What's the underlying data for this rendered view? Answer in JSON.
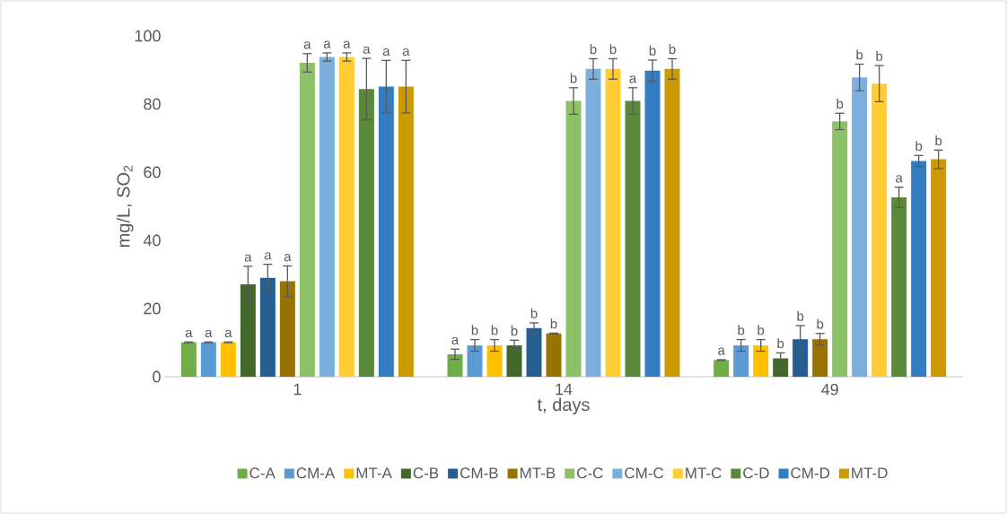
{
  "chart_data": {
    "type": "bar",
    "xlabel": "t, days",
    "ylabel": "mg/L, SO$_{2}$",
    "categories": [
      "1",
      "14",
      "49"
    ],
    "ylim": [
      0,
      100
    ],
    "yticks": [
      0,
      20,
      40,
      60,
      80,
      100
    ],
    "legend": "bottom",
    "series": [
      {
        "name": "C-A",
        "color": "#70ad47",
        "values": [
          10.1,
          6.6,
          4.9
        ],
        "errors": [
          0.1,
          1.5,
          0.1
        ],
        "value_labels": [
          "a",
          "a",
          "a"
        ]
      },
      {
        "name": "CM-A",
        "color": "#5b9bd5",
        "values": [
          10.1,
          9.2,
          9.2
        ],
        "errors": [
          0.1,
          1.7,
          1.7
        ],
        "value_labels": [
          "a",
          "b",
          "b"
        ]
      },
      {
        "name": "MT-A",
        "color": "#ffc000",
        "values": [
          10.1,
          9.2,
          9.2
        ],
        "errors": [
          0.1,
          1.7,
          1.7
        ],
        "value_labels": [
          "a",
          "b",
          "b"
        ]
      },
      {
        "name": "C-B",
        "color": "#43682b",
        "values": [
          27.1,
          9.2,
          5.4
        ],
        "errors": [
          5.3,
          1.5,
          1.6
        ],
        "value_labels": [
          "a",
          "b",
          "b"
        ]
      },
      {
        "name": "CM-B",
        "color": "#255e91",
        "values": [
          29.0,
          14.3,
          11.0
        ],
        "errors": [
          4.0,
          1.5,
          4.0
        ],
        "value_labels": [
          "a",
          "b",
          "b"
        ]
      },
      {
        "name": "MT-B",
        "color": "#997300",
        "values": [
          28.0,
          12.7,
          11.0
        ],
        "errors": [
          4.5,
          0.1,
          1.7
        ],
        "value_labels": [
          "a",
          "b",
          "b"
        ]
      },
      {
        "name": "C-C",
        "color": "#8cc168",
        "values": [
          92.1,
          80.9,
          74.9
        ],
        "errors": [
          2.7,
          3.9,
          2.4
        ],
        "value_labels": [
          "a",
          "b",
          "b"
        ]
      },
      {
        "name": "CM-C",
        "color": "#7cafdd",
        "values": [
          93.8,
          90.3,
          87.8
        ],
        "errors": [
          1.2,
          3.0,
          3.9
        ],
        "value_labels": [
          "a",
          "b",
          "b"
        ]
      },
      {
        "name": "MT-C",
        "color": "#ffcd33",
        "values": [
          93.8,
          90.3,
          86.0
        ],
        "errors": [
          1.2,
          3.0,
          5.3
        ],
        "value_labels": [
          "a",
          "b",
          "b"
        ]
      },
      {
        "name": "C-D",
        "color": "#5a8a39",
        "values": [
          84.4,
          80.9,
          52.6
        ],
        "errors": [
          9.0,
          3.9,
          3.0
        ],
        "value_labels": [
          "a",
          "a",
          "a"
        ]
      },
      {
        "name": "CM-D",
        "color": "#327dc2",
        "values": [
          85.1,
          89.8,
          63.3
        ],
        "errors": [
          7.7,
          3.1,
          1.6
        ],
        "value_labels": [
          "a",
          "b",
          "b"
        ]
      },
      {
        "name": "MT-D",
        "color": "#cc9a00",
        "values": [
          85.1,
          90.3,
          63.8
        ],
        "errors": [
          7.7,
          3.0,
          2.7
        ],
        "value_labels": [
          "a",
          "b",
          "b"
        ]
      }
    ]
  }
}
